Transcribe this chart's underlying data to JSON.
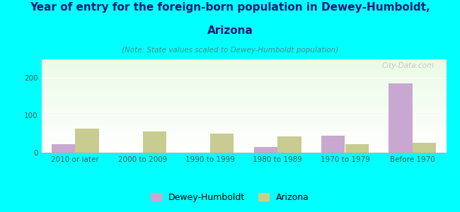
{
  "categories": [
    "2010 or later",
    "2000 to 2009",
    "1990 to 1999",
    "1980 to 1989",
    "1970 to 1979",
    "Before 1970"
  ],
  "dewey_values": [
    22,
    0,
    0,
    15,
    45,
    185
  ],
  "arizona_values": [
    65,
    57,
    52,
    43,
    22,
    27
  ],
  "dewey_color": "#c8a8d0",
  "arizona_color": "#c8cc90",
  "title_line1": "Year of entry for the foreign-born population in Dewey-Humboldt,",
  "title_line2": "Arizona",
  "subtitle": "(Note: State values scaled to Dewey-Humboldt population)",
  "legend_labels": [
    "Dewey-Humboldt",
    "Arizona"
  ],
  "ylim": [
    0,
    250
  ],
  "yticks": [
    0,
    100,
    200
  ],
  "background_color": "#00ffff",
  "bar_width": 0.35,
  "watermark": "City-Data.com",
  "title_fontsize": 11,
  "title_fontsize2": 11,
  "subtitle_fontsize": 7.5,
  "tick_fontsize": 7.5,
  "legend_fontsize": 9
}
